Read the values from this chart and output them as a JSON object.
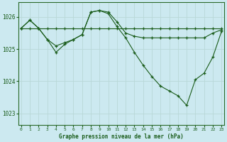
{
  "background_color": "#cce9f0",
  "grid_color": "#aacccc",
  "line_color": "#1a5c1a",
  "ylabel_ticks": [
    1023,
    1024,
    1025,
    1026
  ],
  "xlabel_ticks": [
    0,
    1,
    2,
    3,
    4,
    5,
    6,
    7,
    8,
    9,
    10,
    11,
    12,
    13,
    14,
    15,
    16,
    17,
    18,
    19,
    20,
    21,
    22,
    23
  ],
  "xlabel_label": "Graphe pression niveau de la mer (hPa)",
  "ylim": [
    1022.65,
    1026.45
  ],
  "xlim": [
    -0.3,
    23.3
  ],
  "line1_x": [
    0,
    1,
    2,
    3,
    4,
    5,
    6,
    7,
    8,
    9,
    10,
    11,
    12,
    13,
    14,
    15,
    16,
    17,
    18,
    19,
    20,
    21,
    22,
    23
  ],
  "line1_y": [
    1025.65,
    1025.65,
    1025.65,
    1025.65,
    1025.65,
    1025.65,
    1025.65,
    1025.65,
    1025.65,
    1025.65,
    1025.65,
    1025.65,
    1025.65,
    1025.65,
    1025.65,
    1025.65,
    1025.65,
    1025.65,
    1025.65,
    1025.65,
    1025.65,
    1025.65,
    1025.65,
    1025.65
  ],
  "line2_x": [
    0,
    1,
    2,
    3,
    4,
    5,
    6,
    7,
    8,
    9,
    10,
    11,
    12,
    13,
    14,
    15,
    16,
    17,
    18,
    19,
    20,
    21,
    22,
    23
  ],
  "line2_y": [
    1025.65,
    1025.9,
    1025.65,
    1025.3,
    1024.9,
    1025.15,
    1025.3,
    1025.45,
    1026.15,
    1026.2,
    1026.15,
    1025.85,
    1025.5,
    1025.4,
    1025.35,
    1025.35,
    1025.35,
    1025.35,
    1025.35,
    1025.35,
    1025.35,
    1025.35,
    1025.5,
    1025.6
  ],
  "line3_x": [
    0,
    1,
    2,
    3,
    4,
    5,
    6,
    7,
    8,
    9,
    10,
    11,
    12,
    13,
    14,
    15,
    16,
    17,
    18,
    19,
    20,
    21,
    22,
    23
  ],
  "line3_y": [
    1025.65,
    1025.9,
    1025.65,
    1025.3,
    1025.1,
    1025.2,
    1025.3,
    1025.45,
    1026.15,
    1026.2,
    1026.1,
    1025.7,
    1025.35,
    1024.9,
    1024.5,
    1024.15,
    1023.85,
    1023.7,
    1023.55,
    1023.25,
    1024.05,
    1024.25,
    1024.75,
    1025.55
  ]
}
